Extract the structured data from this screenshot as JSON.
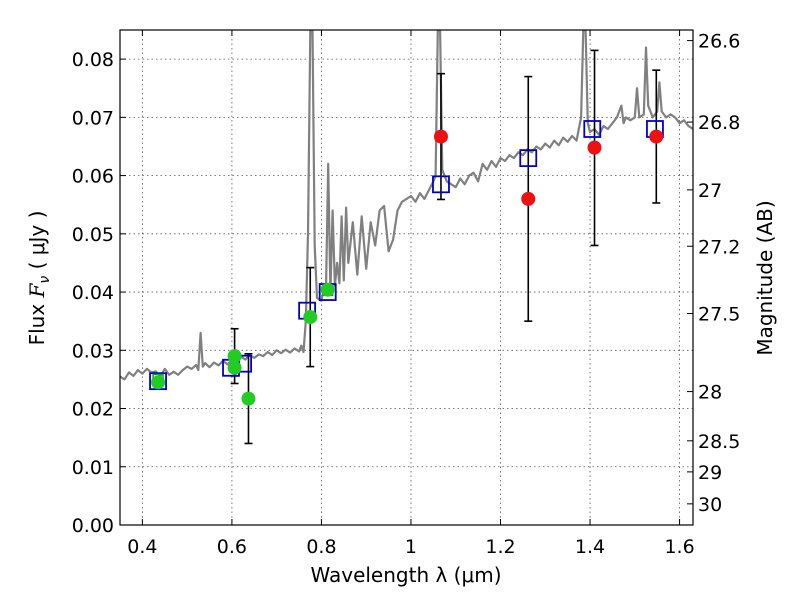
{
  "chart_data": {
    "type": "scatter",
    "xlabel": "Wavelength  λ (μm)",
    "ylabel": "Flux  F_ν  ( μJy )",
    "ylabel_parts": {
      "prefix": "Flux  ",
      "symbol": "F",
      "subscript": "ν",
      "unit": "  ( μJy )"
    },
    "y2label": "Magnitude (AB)",
    "xlim": [
      0.35,
      1.63
    ],
    "ylim": [
      0.0,
      0.085
    ],
    "grid": true,
    "x_ticks": [
      0.4,
      0.6,
      0.8,
      1.0,
      1.2,
      1.4,
      1.6
    ],
    "x_tick_labels": [
      "0.4",
      "0.6",
      "0.8",
      "1",
      "1.2",
      "1.4",
      "1.6"
    ],
    "y_ticks": [
      0.0,
      0.01,
      0.02,
      0.03,
      0.04,
      0.05,
      0.06,
      0.07,
      0.08
    ],
    "y_tick_labels": [
      "0.00",
      "0.01",
      "0.02",
      "0.03",
      "0.04",
      "0.05",
      "0.06",
      "0.07",
      "0.08"
    ],
    "mag_ticks": [
      26.6,
      26.8,
      27.0,
      27.2,
      27.5,
      28.0,
      28.5,
      29.0,
      30.0
    ],
    "mag_tick_labels": [
      "26.6",
      "26.8",
      "27",
      "27.2",
      "27.5",
      "28",
      "28.5",
      "29",
      "30"
    ],
    "colors": {
      "spectrum": "#808080",
      "model_box": "#0000cc",
      "model_box_green": "#00aa00",
      "hst_points": "#22cc22",
      "ir_points": "#ee1111",
      "errorbar": "#000000",
      "grid": "#555555"
    },
    "series": [
      {
        "name": "model spectrum",
        "kind": "line",
        "points": [
          [
            0.35,
            0.0255
          ],
          [
            0.36,
            0.025
          ],
          [
            0.37,
            0.0262
          ],
          [
            0.38,
            0.0256
          ],
          [
            0.39,
            0.0266
          ],
          [
            0.4,
            0.026
          ],
          [
            0.41,
            0.0268
          ],
          [
            0.42,
            0.0262
          ],
          [
            0.43,
            0.0264
          ],
          [
            0.44,
            0.0255
          ],
          [
            0.45,
            0.0268
          ],
          [
            0.46,
            0.0258
          ],
          [
            0.47,
            0.0263
          ],
          [
            0.48,
            0.0258
          ],
          [
            0.49,
            0.0266
          ],
          [
            0.5,
            0.0272
          ],
          [
            0.51,
            0.0268
          ],
          [
            0.52,
            0.0275
          ],
          [
            0.525,
            0.0266
          ],
          [
            0.53,
            0.033
          ],
          [
            0.535,
            0.0272
          ],
          [
            0.54,
            0.0278
          ],
          [
            0.55,
            0.0271
          ],
          [
            0.56,
            0.0279
          ],
          [
            0.57,
            0.0274
          ],
          [
            0.58,
            0.0282
          ],
          [
            0.59,
            0.0276
          ],
          [
            0.6,
            0.0283
          ],
          [
            0.61,
            0.028
          ],
          [
            0.62,
            0.0289
          ],
          [
            0.63,
            0.0284
          ],
          [
            0.64,
            0.0292
          ],
          [
            0.65,
            0.0287
          ],
          [
            0.66,
            0.0293
          ],
          [
            0.67,
            0.029
          ],
          [
            0.68,
            0.0297
          ],
          [
            0.69,
            0.0292
          ],
          [
            0.7,
            0.03
          ],
          [
            0.71,
            0.0295
          ],
          [
            0.72,
            0.0301
          ],
          [
            0.73,
            0.0296
          ],
          [
            0.74,
            0.0303
          ],
          [
            0.75,
            0.0298
          ],
          [
            0.755,
            0.0308
          ],
          [
            0.76,
            0.0297
          ],
          [
            0.765,
            0.035
          ],
          [
            0.77,
            0.05
          ],
          [
            0.775,
            0.085
          ],
          [
            0.78,
            0.085
          ],
          [
            0.785,
            0.048
          ],
          [
            0.79,
            0.039
          ],
          [
            0.8,
            0.0385
          ],
          [
            0.805,
            0.0405
          ],
          [
            0.81,
            0.0395
          ],
          [
            0.815,
            0.062
          ],
          [
            0.82,
            0.04
          ],
          [
            0.825,
            0.054
          ],
          [
            0.83,
            0.041
          ],
          [
            0.835,
            0.045
          ],
          [
            0.84,
            0.0415
          ],
          [
            0.845,
            0.053
          ],
          [
            0.85,
            0.042
          ],
          [
            0.855,
            0.0545
          ],
          [
            0.86,
            0.045
          ],
          [
            0.87,
            0.052
          ],
          [
            0.88,
            0.043
          ],
          [
            0.89,
            0.053
          ],
          [
            0.9,
            0.044
          ],
          [
            0.91,
            0.052
          ],
          [
            0.92,
            0.048
          ],
          [
            0.93,
            0.054
          ],
          [
            0.94,
            0.0548
          ],
          [
            0.95,
            0.047
          ],
          [
            0.96,
            0.049
          ],
          [
            0.97,
            0.054
          ],
          [
            0.98,
            0.0555
          ],
          [
            0.99,
            0.056
          ],
          [
            1.0,
            0.0565
          ],
          [
            1.01,
            0.0555
          ],
          [
            1.02,
            0.057
          ],
          [
            1.03,
            0.056
          ],
          [
            1.04,
            0.0575
          ],
          [
            1.05,
            0.059
          ],
          [
            1.055,
            0.06
          ],
          [
            1.06,
            0.085
          ],
          [
            1.065,
            0.085
          ],
          [
            1.07,
            0.061
          ],
          [
            1.08,
            0.059
          ],
          [
            1.09,
            0.0585
          ],
          [
            1.1,
            0.058
          ],
          [
            1.11,
            0.0595
          ],
          [
            1.12,
            0.0585
          ],
          [
            1.13,
            0.06
          ],
          [
            1.14,
            0.0605
          ],
          [
            1.15,
            0.059
          ],
          [
            1.16,
            0.062
          ],
          [
            1.17,
            0.061
          ],
          [
            1.18,
            0.0625
          ],
          [
            1.19,
            0.0615
          ],
          [
            1.2,
            0.063
          ],
          [
            1.21,
            0.0625
          ],
          [
            1.22,
            0.0635
          ],
          [
            1.23,
            0.063
          ],
          [
            1.24,
            0.064
          ],
          [
            1.25,
            0.0635
          ],
          [
            1.26,
            0.0645
          ],
          [
            1.27,
            0.064
          ],
          [
            1.28,
            0.065
          ],
          [
            1.29,
            0.0645
          ],
          [
            1.3,
            0.0655
          ],
          [
            1.31,
            0.0648
          ],
          [
            1.32,
            0.066
          ],
          [
            1.33,
            0.0652
          ],
          [
            1.34,
            0.0665
          ],
          [
            1.35,
            0.0658
          ],
          [
            1.36,
            0.0668
          ],
          [
            1.37,
            0.066
          ],
          [
            1.375,
            0.068
          ],
          [
            1.38,
            0.07
          ],
          [
            1.385,
            0.085
          ],
          [
            1.39,
            0.085
          ],
          [
            1.395,
            0.069
          ],
          [
            1.4,
            0.0675
          ],
          [
            1.41,
            0.068
          ],
          [
            1.42,
            0.067
          ],
          [
            1.43,
            0.0685
          ],
          [
            1.44,
            0.068
          ],
          [
            1.45,
            0.069
          ],
          [
            1.46,
            0.07
          ],
          [
            1.47,
            0.072
          ],
          [
            1.475,
            0.069
          ],
          [
            1.48,
            0.07
          ],
          [
            1.49,
            0.0695
          ],
          [
            1.5,
            0.07
          ],
          [
            1.505,
            0.075
          ],
          [
            1.51,
            0.07
          ],
          [
            1.52,
            0.0705
          ],
          [
            1.525,
            0.082
          ],
          [
            1.53,
            0.072
          ],
          [
            1.54,
            0.07
          ],
          [
            1.55,
            0.071
          ],
          [
            1.555,
            0.076
          ],
          [
            1.56,
            0.071
          ],
          [
            1.57,
            0.07
          ],
          [
            1.58,
            0.0705
          ],
          [
            1.59,
            0.07
          ],
          [
            1.6,
            0.069
          ],
          [
            1.61,
            0.0695
          ],
          [
            1.62,
            0.0685
          ],
          [
            1.63,
            0.068
          ]
        ]
      },
      {
        "name": "model photometry",
        "kind": "box",
        "points": [
          {
            "x": 0.435,
            "y": 0.0247,
            "color": "blue"
          },
          {
            "x": 0.435,
            "y": 0.025,
            "color": "green"
          },
          {
            "x": 0.598,
            "y": 0.027,
            "color": "blue"
          },
          {
            "x": 0.625,
            "y": 0.0277,
            "color": "blue"
          },
          {
            "x": 0.768,
            "y": 0.0368,
            "color": "blue"
          },
          {
            "x": 0.814,
            "y": 0.04,
            "color": "blue"
          },
          {
            "x": 0.814,
            "y": 0.0403,
            "color": "green"
          },
          {
            "x": 1.067,
            "y": 0.0585,
            "color": "blue"
          },
          {
            "x": 1.262,
            "y": 0.063,
            "color": "blue"
          },
          {
            "x": 1.405,
            "y": 0.068,
            "color": "blue"
          },
          {
            "x": 1.545,
            "y": 0.068,
            "color": "blue"
          }
        ]
      },
      {
        "name": "HST observed",
        "kind": "point",
        "color": "green",
        "points": [
          {
            "x": 0.435,
            "y": 0.0245,
            "yerr_low": 0.0245,
            "yerr_high": 0.0245
          },
          {
            "x": 0.606,
            "y": 0.029,
            "yerr_low": 0.0243,
            "yerr_high": 0.0337
          },
          {
            "x": 0.606,
            "y": 0.027,
            "yerr_low": 0.0256,
            "yerr_high": 0.0284
          },
          {
            "x": 0.637,
            "y": 0.0217,
            "yerr_low": 0.014,
            "yerr_high": 0.0294
          },
          {
            "x": 0.775,
            "y": 0.0357,
            "yerr_low": 0.0272,
            "yerr_high": 0.0442
          },
          {
            "x": 0.814,
            "y": 0.0404,
            "yerr_low": 0.0404,
            "yerr_high": 0.0404
          }
        ]
      },
      {
        "name": "IR observed",
        "kind": "point",
        "color": "red",
        "points": [
          {
            "x": 1.067,
            "y": 0.0667,
            "yerr_low": 0.0559,
            "yerr_high": 0.0775
          },
          {
            "x": 1.262,
            "y": 0.056,
            "yerr_low": 0.035,
            "yerr_high": 0.077
          },
          {
            "x": 1.41,
            "y": 0.0648,
            "yerr_low": 0.048,
            "yerr_high": 0.0815
          },
          {
            "x": 1.548,
            "y": 0.0667,
            "yerr_low": 0.0553,
            "yerr_high": 0.0781
          }
        ]
      }
    ]
  }
}
